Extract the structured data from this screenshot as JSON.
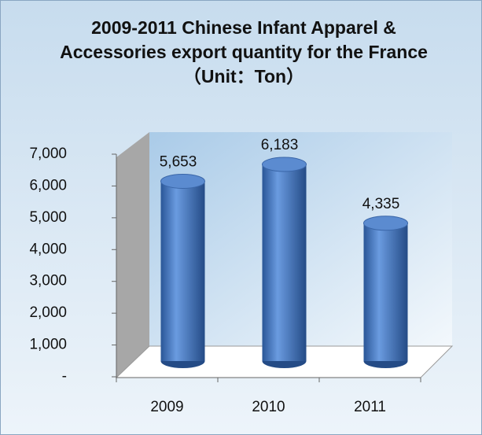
{
  "chart_data": {
    "type": "bar",
    "title": "2009-2011 Chinese Infant Apparel & Accessories export quantity for the France（Unit：Ton）",
    "categories": [
      "2009",
      "2010",
      "2011"
    ],
    "values": [
      5653,
      6183,
      4335
    ],
    "value_labels": [
      "5,653",
      "6,183",
      "4,335"
    ],
    "color": "#3f72b8",
    "ylim": [
      0,
      7000
    ],
    "yticks": [
      {
        "value": 0,
        "label": "-"
      },
      {
        "value": 1000,
        "label": "1,000"
      },
      {
        "value": 2000,
        "label": "2,000"
      },
      {
        "value": 3000,
        "label": "3,000"
      },
      {
        "value": 4000,
        "label": "4,000"
      },
      {
        "value": 5000,
        "label": "5,000"
      },
      {
        "value": 6000,
        "label": "6,000"
      },
      {
        "value": 7000,
        "label": "7,000"
      }
    ]
  }
}
